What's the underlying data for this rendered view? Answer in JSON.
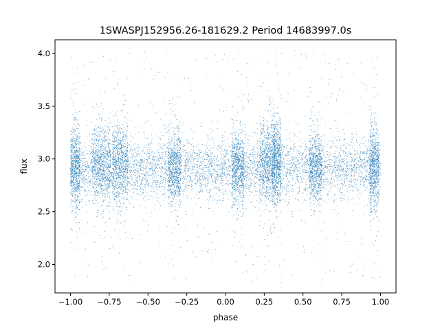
{
  "chart_data": {
    "type": "scatter",
    "title": "1SWASPJ152956.26-181629.2 Period 14683997.0s",
    "xlabel": "phase",
    "ylabel": "flux",
    "xlim": [
      -1.1,
      1.1
    ],
    "ylim": [
      1.73,
      4.13
    ],
    "xticks": [
      -1.0,
      -0.75,
      -0.5,
      -0.25,
      0.0,
      0.25,
      0.5,
      0.75,
      1.0
    ],
    "xtick_labels": [
      "−1.00",
      "−0.75",
      "−0.50",
      "−0.25",
      "0.00",
      "0.25",
      "0.50",
      "0.75",
      "1.00"
    ],
    "yticks": [
      2.0,
      2.5,
      3.0,
      3.5,
      4.0
    ],
    "ytick_labels": [
      "2.0",
      "2.5",
      "3.0",
      "3.5",
      "4.0"
    ],
    "grid": false,
    "marker_color": "#1f77b4",
    "points_summary": {
      "x_range": [
        -1.0,
        1.0
      ],
      "y_core_mean": 2.91,
      "y_core_spread": 0.14,
      "y_outlier_range": [
        1.83,
        4.02
      ],
      "density_bands": [
        {
          "phase": -0.97,
          "half_width": 0.03,
          "y_mean": 2.92,
          "spread": 0.2
        },
        {
          "phase": -0.8,
          "half_width": 0.06,
          "y_mean": 2.95,
          "spread": 0.2
        },
        {
          "phase": -0.68,
          "half_width": 0.05,
          "y_mean": 2.98,
          "spread": 0.22
        },
        {
          "phase": -0.33,
          "half_width": 0.04,
          "y_mean": 2.9,
          "spread": 0.17
        },
        {
          "phase": 0.08,
          "half_width": 0.04,
          "y_mean": 2.92,
          "spread": 0.18
        },
        {
          "phase": 0.27,
          "half_width": 0.05,
          "y_mean": 2.98,
          "spread": 0.2
        },
        {
          "phase": 0.33,
          "half_width": 0.03,
          "y_mean": 2.98,
          "spread": 0.2
        },
        {
          "phase": 0.58,
          "half_width": 0.04,
          "y_mean": 2.92,
          "spread": 0.17
        },
        {
          "phase": 0.96,
          "half_width": 0.03,
          "y_mean": 2.92,
          "spread": 0.2
        }
      ]
    }
  }
}
